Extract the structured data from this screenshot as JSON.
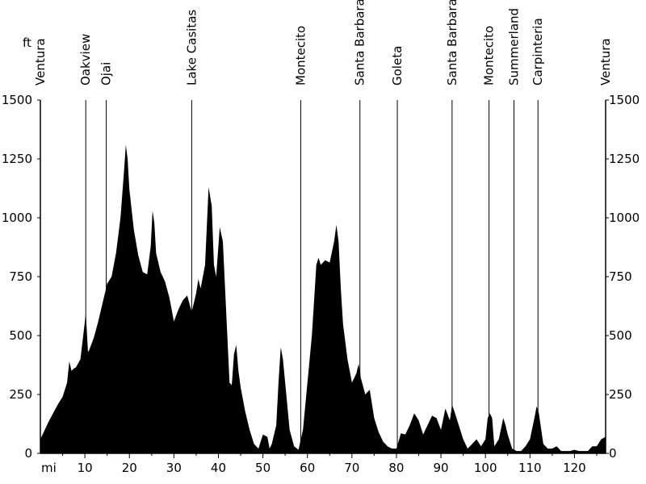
{
  "chart_data": {
    "type": "area",
    "y_unit_label": "ft",
    "x_unit_label": "mi",
    "xlim": [
      0,
      127
    ],
    "ylim": [
      0,
      1500
    ],
    "y_ticks": [
      0,
      250,
      500,
      750,
      1000,
      1250,
      1500
    ],
    "x_ticks": [
      10,
      20,
      30,
      40,
      50,
      60,
      70,
      80,
      90,
      100,
      110,
      120
    ],
    "fill_color": "#000000",
    "towns": [
      {
        "name": "Ventura",
        "x": 0
      },
      {
        "name": "Oakview",
        "x": 10.2
      },
      {
        "name": "Ojai",
        "x": 14.8
      },
      {
        "name": "Lake Casitas",
        "x": 34.0
      },
      {
        "name": "Montecito",
        "x": 58.5
      },
      {
        "name": "Santa Barbara",
        "x": 71.8
      },
      {
        "name": "Goleta",
        "x": 80.2
      },
      {
        "name": "Santa Barbara",
        "x": 92.5
      },
      {
        "name": "Montecito",
        "x": 100.8
      },
      {
        "name": "Summerland",
        "x": 106.4
      },
      {
        "name": "Carpinteria",
        "x": 111.8
      },
      {
        "name": "Ventura",
        "x": 127
      }
    ],
    "profile": [
      [
        0,
        60
      ],
      [
        1,
        100
      ],
      [
        2,
        140
      ],
      [
        3,
        175
      ],
      [
        4,
        210
      ],
      [
        5,
        240
      ],
      [
        6,
        300
      ],
      [
        6.5,
        390
      ],
      [
        7,
        350
      ],
      [
        7.5,
        360
      ],
      [
        8,
        365
      ],
      [
        9,
        400
      ],
      [
        9.5,
        480
      ],
      [
        10,
        560
      ],
      [
        10.2,
        600
      ],
      [
        10.7,
        430
      ],
      [
        11,
        440
      ],
      [
        12,
        490
      ],
      [
        13,
        560
      ],
      [
        14,
        640
      ],
      [
        14.5,
        680
      ],
      [
        15,
        720
      ],
      [
        16,
        750
      ],
      [
        17,
        850
      ],
      [
        18,
        1000
      ],
      [
        18.8,
        1200
      ],
      [
        19.2,
        1310
      ],
      [
        19.6,
        1250
      ],
      [
        20,
        1120
      ],
      [
        21,
        950
      ],
      [
        22,
        840
      ],
      [
        23,
        770
      ],
      [
        24,
        760
      ],
      [
        24.8,
        880
      ],
      [
        25.2,
        1030
      ],
      [
        25.6,
        980
      ],
      [
        26,
        850
      ],
      [
        27,
        770
      ],
      [
        28,
        730
      ],
      [
        29,
        660
      ],
      [
        30,
        560
      ],
      [
        31,
        610
      ],
      [
        32,
        650
      ],
      [
        33,
        670
      ],
      [
        34,
        600
      ],
      [
        35,
        680
      ],
      [
        35.5,
        740
      ],
      [
        36,
        700
      ],
      [
        37,
        800
      ],
      [
        37.8,
        1130
      ],
      [
        38.5,
        1050
      ],
      [
        39,
        800
      ],
      [
        39.5,
        750
      ],
      [
        40.3,
        960
      ],
      [
        41,
        900
      ],
      [
        41.5,
        700
      ],
      [
        42,
        500
      ],
      [
        42.5,
        300
      ],
      [
        43,
        290
      ],
      [
        43.5,
        420
      ],
      [
        44,
        460
      ],
      [
        44.5,
        350
      ],
      [
        45,
        280
      ],
      [
        46,
        180
      ],
      [
        47,
        100
      ],
      [
        48,
        40
      ],
      [
        49,
        20
      ],
      [
        50,
        80
      ],
      [
        51,
        70
      ],
      [
        51.5,
        20
      ],
      [
        52,
        40
      ],
      [
        53,
        120
      ],
      [
        53.5,
        300
      ],
      [
        54,
        450
      ],
      [
        54.5,
        400
      ],
      [
        55,
        300
      ],
      [
        56,
        100
      ],
      [
        57,
        30
      ],
      [
        58,
        15
      ],
      [
        59,
        100
      ],
      [
        60,
        300
      ],
      [
        61,
        500
      ],
      [
        61.5,
        650
      ],
      [
        62,
        800
      ],
      [
        62.5,
        830
      ],
      [
        63,
        800
      ],
      [
        64,
        820
      ],
      [
        65,
        810
      ],
      [
        66,
        900
      ],
      [
        66.5,
        970
      ],
      [
        67,
        900
      ],
      [
        67.5,
        700
      ],
      [
        68,
        550
      ],
      [
        69,
        400
      ],
      [
        70,
        300
      ],
      [
        71,
        340
      ],
      [
        71.5,
        380
      ],
      [
        72,
        320
      ],
      [
        73,
        250
      ],
      [
        74,
        270
      ],
      [
        75,
        150
      ],
      [
        76,
        90
      ],
      [
        77,
        50
      ],
      [
        78,
        30
      ],
      [
        79,
        20
      ],
      [
        80,
        20
      ],
      [
        81,
        85
      ],
      [
        82,
        80
      ],
      [
        83,
        120
      ],
      [
        84,
        170
      ],
      [
        85,
        140
      ],
      [
        86,
        80
      ],
      [
        87,
        120
      ],
      [
        88,
        160
      ],
      [
        89,
        150
      ],
      [
        90,
        100
      ],
      [
        91,
        190
      ],
      [
        92,
        140
      ],
      [
        92.5,
        205
      ],
      [
        93,
        180
      ],
      [
        94,
        120
      ],
      [
        95,
        60
      ],
      [
        96,
        20
      ],
      [
        97,
        40
      ],
      [
        98,
        60
      ],
      [
        99,
        30
      ],
      [
        100,
        60
      ],
      [
        100.5,
        150
      ],
      [
        101,
        170
      ],
      [
        101.5,
        150
      ],
      [
        102,
        30
      ],
      [
        103,
        60
      ],
      [
        104,
        150
      ],
      [
        104.5,
        120
      ],
      [
        105,
        80
      ],
      [
        106,
        20
      ],
      [
        107,
        10
      ],
      [
        108,
        10
      ],
      [
        109,
        30
      ],
      [
        110,
        60
      ],
      [
        111,
        150
      ],
      [
        111.5,
        200
      ],
      [
        112,
        170
      ],
      [
        113,
        40
      ],
      [
        114,
        20
      ],
      [
        115,
        20
      ],
      [
        116,
        30
      ],
      [
        117,
        10
      ],
      [
        118,
        10
      ],
      [
        119,
        10
      ],
      [
        120,
        15
      ],
      [
        121,
        10
      ],
      [
        122,
        10
      ],
      [
        123,
        10
      ],
      [
        124,
        30
      ],
      [
        125,
        30
      ],
      [
        126,
        60
      ],
      [
        127,
        70
      ]
    ]
  }
}
